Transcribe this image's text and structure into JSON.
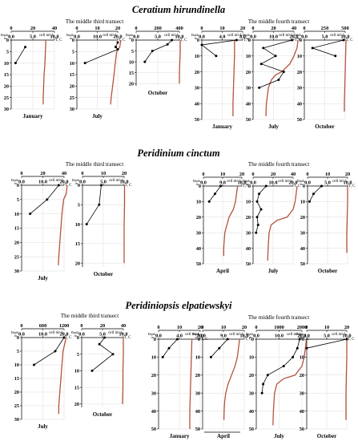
{
  "sections": [
    {
      "title": "Ceratium hirundinella",
      "sub_left": "The middle third transect",
      "sub_right": "The middle fourth transect"
    },
    {
      "title": "Peridinium cinctum",
      "sub_left": "The middle third transect",
      "sub_right": "The middle fourth transect"
    },
    {
      "title": "Peridiniopsis elpatiewskyi",
      "sub_left": "The middle third transect",
      "sub_right": "The middle fourth transect"
    }
  ],
  "labels": {
    "cell": "cell ml-1",
    "depth": "Depth,",
    "depth_unit": "m",
    "temp": "T, C"
  },
  "colors": {
    "temperature": "#b5533c",
    "cells": "#000000",
    "grid": "#dcdcdc"
  },
  "chart_data": [
    {
      "type": "line",
      "section": 0,
      "transect": "middle third",
      "month": "January",
      "cell_ticks": [
        0,
        20,
        40
      ],
      "cell_lim": [
        0,
        40
      ],
      "temp_ticks": [
        0.0,
        5.0,
        10.0
      ],
      "temp_lim": [
        0,
        10
      ],
      "depth_ticks": [
        0,
        5,
        10,
        15,
        20,
        25,
        30
      ],
      "depth_lim": [
        0,
        30
      ],
      "series": [
        {
          "name": "cells",
          "depth": [
            3,
            10
          ],
          "value": [
            13,
            4
          ]
        },
        {
          "name": "temperature",
          "depth": [
            0,
            5,
            10,
            15,
            20,
            25,
            28
          ],
          "value": [
            8.0,
            7.9,
            7.8,
            7.6,
            7.5,
            7.4,
            7.4
          ]
        }
      ]
    },
    {
      "type": "line",
      "section": 0,
      "transect": "middle third",
      "month": "July",
      "cell_ticks": [
        0,
        10,
        20
      ],
      "cell_lim": [
        0,
        20
      ],
      "temp_ticks": [
        0.0,
        10.0,
        20.0
      ],
      "temp_lim": [
        0,
        20
      ],
      "depth_ticks": [
        0,
        5,
        10,
        15,
        20,
        25,
        30
      ],
      "depth_lim": [
        0,
        30
      ],
      "series": [
        {
          "name": "cells",
          "depth": [
            1,
            3,
            4,
            10
          ],
          "value": [
            20,
            19,
            20,
            4
          ]
        },
        {
          "name": "temperature",
          "depth": [
            0,
            3,
            5,
            10,
            15,
            20,
            25,
            28
          ],
          "value": [
            21.5,
            21.0,
            19.5,
            18.8,
            18.2,
            17.5,
            16.8,
            16.5
          ]
        }
      ]
    },
    {
      "type": "line",
      "section": 0,
      "transect": "middle third",
      "month": "October",
      "cell_ticks": [
        0,
        200,
        400
      ],
      "cell_lim": [
        0,
        400
      ],
      "temp_ticks": [
        0.0,
        5.0,
        10.0
      ],
      "temp_lim": [
        0,
        10
      ],
      "depth_ticks": [
        0,
        5,
        10,
        15,
        20
      ],
      "depth_lim": [
        0,
        21
      ],
      "series": [
        {
          "name": "cells",
          "depth": [
            0,
            2,
            5,
            10
          ],
          "value": [
            330,
            290,
            150,
            80
          ]
        },
        {
          "name": "temperature",
          "depth": [
            0,
            5,
            10,
            15,
            20
          ],
          "value": [
            10.2,
            10.2,
            10.1,
            10.0,
            10.0
          ]
        }
      ]
    },
    {
      "type": "line",
      "section": 0,
      "transect": "middle fourth",
      "month": "January",
      "cell_ticks": [
        0,
        10,
        20
      ],
      "cell_lim": [
        0,
        20
      ],
      "temp_ticks": [
        0.0,
        4.0,
        8.0
      ],
      "temp_lim": [
        0,
        8
      ],
      "depth_ticks": [
        0,
        10,
        20,
        30,
        40,
        50
      ],
      "depth_lim": [
        0,
        50
      ],
      "series": [
        {
          "name": "cells",
          "depth": [
            0,
            3,
            10
          ],
          "value": [
            17,
            0,
            7
          ]
        },
        {
          "name": "temperature",
          "depth": [
            0,
            10,
            20,
            30,
            40,
            48
          ],
          "value": [
            6.4,
            6.4,
            6.3,
            6.2,
            6.1,
            6.1
          ]
        }
      ]
    },
    {
      "type": "line",
      "section": 0,
      "transect": "middle fourth",
      "month": "July",
      "cell_ticks": [
        0,
        20,
        40
      ],
      "cell_lim": [
        0,
        40
      ],
      "temp_ticks": [
        0.0,
        10.0,
        20.0
      ],
      "temp_lim": [
        0,
        20
      ],
      "depth_ticks": [
        0,
        10,
        20,
        30,
        40,
        50
      ],
      "depth_lim": [
        0,
        50
      ],
      "series": [
        {
          "name": "cells",
          "depth": [
            0,
            5,
            10,
            15,
            20,
            25,
            30
          ],
          "value": [
            38,
            10,
            22,
            8,
            30,
            25,
            6
          ]
        },
        {
          "name": "temperature",
          "depth": [
            0,
            5,
            10,
            15,
            20,
            22,
            25,
            30,
            40,
            48
          ],
          "value": [
            22.0,
            21.5,
            20.0,
            18.0,
            14.0,
            11.0,
            9.0,
            7.5,
            6.5,
            6.3
          ]
        }
      ]
    },
    {
      "type": "line",
      "section": 0,
      "transect": "middle fourth",
      "month": "October",
      "cell_ticks": [
        0,
        250,
        500
      ],
      "cell_lim": [
        0,
        500
      ],
      "temp_ticks": [
        0.0,
        5.0,
        10.0
      ],
      "temp_lim": [
        0,
        10
      ],
      "depth_ticks": [
        0,
        10,
        20,
        30,
        40,
        50
      ],
      "depth_lim": [
        0,
        50
      ],
      "series": [
        {
          "name": "cells",
          "depth": [
            0,
            5,
            10
          ],
          "value": [
            480,
            100,
            380
          ]
        },
        {
          "name": "temperature",
          "depth": [
            0,
            10,
            20,
            30,
            40,
            45
          ],
          "value": [
            10.2,
            10.1,
            10.0,
            9.9,
            9.8,
            9.8
          ]
        }
      ]
    },
    {
      "type": "line",
      "section": 1,
      "transect": "middle third",
      "month": "July",
      "cell_ticks": [
        0,
        20,
        40
      ],
      "cell_lim": [
        0,
        40
      ],
      "temp_ticks": [
        0.0,
        10.0,
        20.0
      ],
      "temp_lim": [
        0,
        20
      ],
      "depth_ticks": [
        0,
        5,
        10,
        15,
        20,
        25,
        30
      ],
      "depth_lim": [
        0,
        30
      ],
      "series": [
        {
          "name": "cells",
          "depth": [
            0,
            5,
            10
          ],
          "value": [
            35,
            24,
            8
          ]
        },
        {
          "name": "temperature",
          "depth": [
            0,
            3,
            5,
            10,
            15,
            20,
            25,
            28
          ],
          "value": [
            21.5,
            21.0,
            19.8,
            19.0,
            18.5,
            18.0,
            17.5,
            17.3
          ]
        }
      ]
    },
    {
      "type": "line",
      "section": 1,
      "transect": "middle third",
      "month": "October",
      "cell_ticks": [
        0,
        10,
        20
      ],
      "cell_lim": [
        0,
        20
      ],
      "temp_ticks": [
        0.0,
        5.0,
        10.0
      ],
      "temp_lim": [
        0,
        10
      ],
      "depth_ticks": [
        0,
        5,
        10,
        15,
        20
      ],
      "depth_lim": [
        0,
        21
      ],
      "series": [
        {
          "name": "cells",
          "depth": [
            0,
            5,
            10
          ],
          "value": [
            9,
            8,
            2
          ]
        },
        {
          "name": "temperature",
          "depth": [
            0,
            5,
            10,
            15,
            20
          ],
          "value": [
            10.1,
            10.1,
            10.0,
            10.0,
            10.0
          ]
        }
      ]
    },
    {
      "type": "line",
      "section": 1,
      "transect": "middle fourth",
      "month": "April",
      "cell_ticks": [
        0,
        10,
        20
      ],
      "cell_lim": [
        0,
        20
      ],
      "temp_ticks": [
        0.0,
        9.0,
        18.0
      ],
      "temp_lim": [
        0,
        18
      ],
      "depth_ticks": [
        0,
        10,
        20,
        30,
        40,
        50
      ],
      "depth_lim": [
        0,
        50
      ],
      "series": [
        {
          "name": "cells",
          "depth": [
            0,
            5,
            10
          ],
          "value": [
            9,
            6,
            3
          ]
        },
        {
          "name": "temperature",
          "depth": [
            0,
            5,
            10,
            15,
            20,
            25,
            30,
            40,
            45
          ],
          "value": [
            16.0,
            15.5,
            15.0,
            14.0,
            12.0,
            11.0,
            10.0,
            9.5,
            9.5
          ]
        }
      ]
    },
    {
      "type": "line",
      "section": 1,
      "transect": "middle fourth",
      "month": "July",
      "cell_ticks": [
        0,
        20,
        40
      ],
      "cell_lim": [
        0,
        40
      ],
      "temp_ticks": [
        0.0,
        10.0,
        20.0
      ],
      "temp_lim": [
        0,
        20
      ],
      "depth_ticks": [
        0,
        10,
        20,
        30,
        40,
        50
      ],
      "depth_lim": [
        0,
        50
      ],
      "series": [
        {
          "name": "cells",
          "depth": [
            0,
            5,
            10,
            15,
            20,
            25,
            30
          ],
          "value": [
            13,
            6,
            4,
            8,
            4,
            5,
            3
          ]
        },
        {
          "name": "temperature",
          "depth": [
            0,
            5,
            10,
            15,
            20,
            22,
            25,
            30,
            40,
            48
          ],
          "value": [
            22.0,
            21.5,
            21.0,
            20.0,
            17.0,
            12.0,
            9.0,
            8.0,
            7.5,
            7.3
          ]
        }
      ]
    },
    {
      "type": "line",
      "section": 1,
      "transect": "middle fourth",
      "month": "October",
      "cell_ticks": [
        0,
        10,
        20
      ],
      "cell_lim": [
        0,
        20
      ],
      "temp_ticks": [
        0.0,
        5.0,
        10.0
      ],
      "temp_lim": [
        0,
        10
      ],
      "depth_ticks": [
        0,
        10,
        20,
        30,
        40,
        50
      ],
      "depth_lim": [
        0,
        50
      ],
      "series": [
        {
          "name": "cells",
          "depth": [
            0,
            5,
            10
          ],
          "value": [
            7,
            3,
            1
          ]
        },
        {
          "name": "temperature",
          "depth": [
            0,
            10,
            20,
            30,
            40,
            43
          ],
          "value": [
            10.0,
            10.0,
            9.9,
            9.8,
            9.8,
            9.8
          ]
        }
      ]
    },
    {
      "type": "line",
      "section": 2,
      "transect": "middle third",
      "month": "July",
      "cell_ticks": [
        0,
        600,
        1200
      ],
      "cell_lim": [
        0,
        1200
      ],
      "temp_ticks": [
        0.0,
        10.0,
        20.0
      ],
      "temp_lim": [
        0,
        20
      ],
      "depth_ticks": [
        0,
        5,
        10,
        15,
        20,
        25,
        30
      ],
      "depth_lim": [
        0,
        30
      ],
      "series": [
        {
          "name": "cells",
          "depth": [
            0,
            5,
            10
          ],
          "value": [
            1200,
            950,
            350
          ]
        },
        {
          "name": "temperature",
          "depth": [
            0,
            5,
            10,
            15,
            20,
            25,
            28
          ],
          "value": [
            21.0,
            19.5,
            19.0,
            18.5,
            18.0,
            17.5,
            17.5
          ]
        }
      ]
    },
    {
      "type": "line",
      "section": 2,
      "transect": "middle third",
      "month": "October",
      "cell_ticks": [
        0,
        20,
        40
      ],
      "cell_lim": [
        0,
        40
      ],
      "temp_ticks": [
        0.0,
        5.0,
        10.0
      ],
      "temp_lim": [
        0,
        10
      ],
      "depth_ticks": [
        0,
        5,
        10,
        15,
        20
      ],
      "depth_lim": [
        0,
        21
      ],
      "series": [
        {
          "name": "cells",
          "depth": [
            0,
            2,
            5,
            10
          ],
          "value": [
            22,
            17,
            30,
            10
          ]
        },
        {
          "name": "temperature",
          "depth": [
            0,
            5,
            10,
            15,
            20
          ],
          "value": [
            10.0,
            10.0,
            9.9,
            9.9,
            9.8
          ]
        }
      ]
    },
    {
      "type": "line",
      "section": 2,
      "transect": "middle fourth",
      "month": "January",
      "cell_ticks": [
        0,
        10,
        20
      ],
      "cell_lim": [
        0,
        20
      ],
      "temp_ticks": [
        0.0,
        4.0,
        8.0
      ],
      "temp_lim": [
        0,
        8
      ],
      "depth_ticks": [
        0,
        10,
        20,
        30,
        40,
        50
      ],
      "depth_lim": [
        0,
        50
      ],
      "series": [
        {
          "name": "cells",
          "depth": [
            0,
            5,
            10
          ],
          "value": [
            9,
            5,
            2
          ]
        },
        {
          "name": "temperature",
          "depth": [
            0,
            10,
            20,
            30,
            40,
            50
          ],
          "value": [
            6.4,
            6.3,
            6.2,
            6.1,
            6.0,
            6.0
          ]
        }
      ]
    },
    {
      "type": "line",
      "section": 2,
      "transect": "middle fourth",
      "month": "April",
      "cell_ticks": [
        0,
        10,
        20
      ],
      "cell_lim": [
        0,
        20
      ],
      "temp_ticks": [
        0.0,
        9.0,
        18.0
      ],
      "temp_lim": [
        0,
        18
      ],
      "depth_ticks": [
        0,
        10,
        20,
        30,
        40,
        50
      ],
      "depth_lim": [
        0,
        50
      ],
      "series": [
        {
          "name": "cells",
          "depth": [
            0,
            5,
            10
          ],
          "value": [
            12,
            8,
            4
          ]
        },
        {
          "name": "temperature",
          "depth": [
            0,
            5,
            10,
            15,
            20,
            25,
            30,
            35,
            40,
            45
          ],
          "value": [
            16.0,
            15.5,
            15.0,
            14.0,
            12.5,
            11.0,
            10.0,
            9.5,
            9.3,
            9.2
          ]
        }
      ]
    },
    {
      "type": "line",
      "section": 2,
      "transect": "middle fourth",
      "month": "July",
      "cell_ticks": [
        0,
        1000,
        2000
      ],
      "cell_lim": [
        0,
        2000
      ],
      "temp_ticks": [
        0.0,
        10.0,
        20.0
      ],
      "temp_lim": [
        0,
        20
      ],
      "depth_ticks": [
        0,
        10,
        20,
        30,
        40,
        50
      ],
      "depth_lim": [
        0,
        50
      ],
      "series": [
        {
          "name": "cells",
          "depth": [
            0,
            5,
            10,
            15,
            20,
            25,
            30
          ],
          "value": [
            1900,
            1800,
            1600,
            1200,
            500,
            300,
            250
          ]
        },
        {
          "name": "temperature",
          "depth": [
            0,
            5,
            10,
            15,
            20,
            22,
            25,
            30,
            40,
            48
          ],
          "value": [
            22.0,
            21.5,
            21.0,
            20.0,
            17.0,
            12.0,
            9.0,
            8.0,
            7.5,
            7.3
          ]
        }
      ]
    },
    {
      "type": "line",
      "section": 2,
      "transect": "middle fourth",
      "month": "October",
      "cell_ticks": [
        0,
        10,
        20
      ],
      "cell_lim": [
        0,
        20
      ],
      "temp_ticks": [
        0.0,
        5.0,
        10.0
      ],
      "temp_lim": [
        0,
        10
      ],
      "depth_ticks": [
        0,
        10,
        20,
        30,
        40,
        50
      ],
      "depth_lim": [
        0,
        50
      ],
      "series": [
        {
          "name": "cells",
          "depth": [
            0,
            5
          ],
          "value": [
            20,
            0
          ]
        },
        {
          "name": "temperature",
          "depth": [
            0,
            10,
            20,
            30,
            40,
            45
          ],
          "value": [
            10.0,
            10.0,
            9.9,
            9.8,
            9.8,
            9.8
          ]
        }
      ]
    }
  ]
}
